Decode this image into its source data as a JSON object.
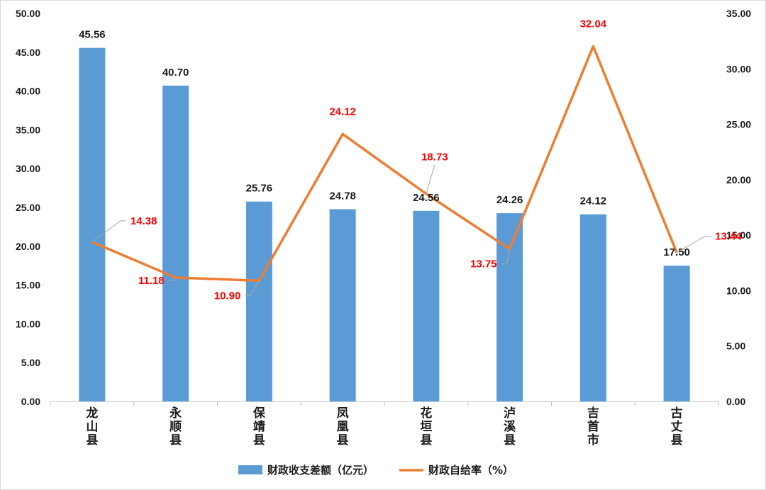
{
  "chart_data": {
    "type": "bar",
    "categories": [
      "龙山县",
      "永顺县",
      "保靖县",
      "凤凰县",
      "花垣县",
      "泸溪县",
      "吉首市",
      "古丈县"
    ],
    "series": [
      {
        "name": "财政收支差额（亿元）",
        "type": "bar",
        "axis": "left",
        "color": "#5b9bd5",
        "values": [
          45.56,
          40.7,
          25.76,
          24.78,
          24.56,
          24.26,
          24.12,
          17.5
        ],
        "labels": [
          "45.56",
          "40.70",
          "25.76",
          "24.78",
          "24.56",
          "24.26",
          "24.12",
          "17.50"
        ]
      },
      {
        "name": "财政自给率（%）",
        "type": "line",
        "axis": "right",
        "color": "#ed7d31",
        "label_color": "#ff0000",
        "values": [
          14.38,
          11.18,
          10.9,
          24.12,
          18.73,
          13.75,
          32.04,
          13.44
        ],
        "labels": [
          "14.38",
          "11.18",
          "10.90",
          "24.12",
          "18.73",
          "13.75",
          "32.04",
          "13.44"
        ]
      }
    ],
    "y_left": {
      "min": 0,
      "max": 50,
      "ticks": [
        "0.00",
        "5.00",
        "10.00",
        "15.00",
        "20.00",
        "25.00",
        "30.00",
        "35.00",
        "40.00",
        "45.00",
        "50.00"
      ]
    },
    "y_right": {
      "min": 0,
      "max": 35,
      "ticks": [
        "0.00",
        "5.00",
        "10.00",
        "15.00",
        "20.00",
        "25.00",
        "30.00",
        "35.00"
      ]
    },
    "grid": false,
    "legend_position": "bottom"
  }
}
